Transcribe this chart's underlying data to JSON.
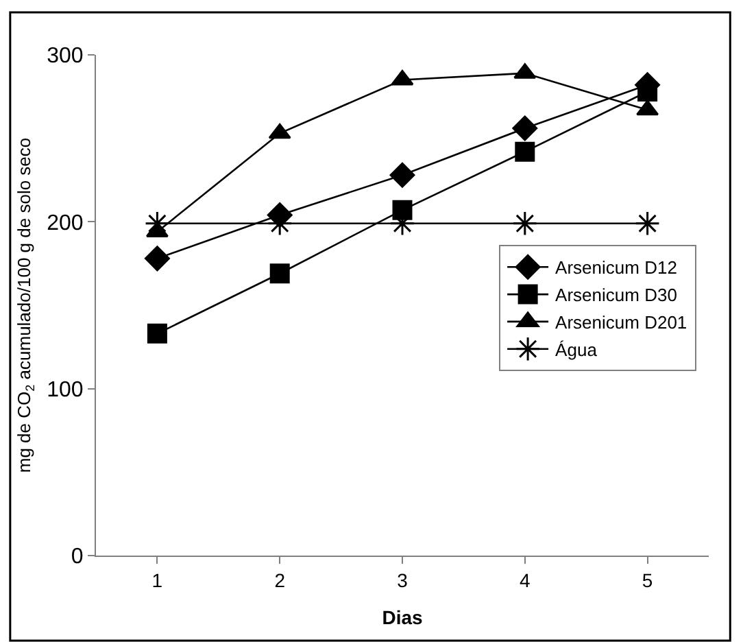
{
  "chart_data": {
    "type": "line",
    "xlabel": "Dias",
    "ylabel": "mg de CO$_{2}$ acumulado/100 g de solo seco",
    "x": [
      1,
      2,
      3,
      4,
      5
    ],
    "xlim": [
      0.5,
      5.5
    ],
    "xticks": [
      1,
      2,
      3,
      4,
      5
    ],
    "ylim": [
      0,
      300
    ],
    "yticks": [
      0,
      100,
      200,
      300
    ],
    "legend": "right",
    "line_style": "solid",
    "series": [
      {
        "name": "Arsenicum D12",
        "color": "#000000",
        "marker": "diamond",
        "values": [
          178,
          204,
          228,
          256,
          282
        ]
      },
      {
        "name": "Arsenicum D30",
        "color": "#000000",
        "marker": "square",
        "values": [
          133,
          169,
          207,
          242,
          278
        ]
      },
      {
        "name": "Arsenicum D201",
        "color": "#000000",
        "marker": "triangle",
        "values": [
          194,
          253,
          285,
          289,
          267
        ]
      },
      {
        "name": "Água",
        "color": "#000000",
        "marker": "cross",
        "values": [
          199,
          199,
          199,
          199,
          199
        ]
      }
    ]
  }
}
